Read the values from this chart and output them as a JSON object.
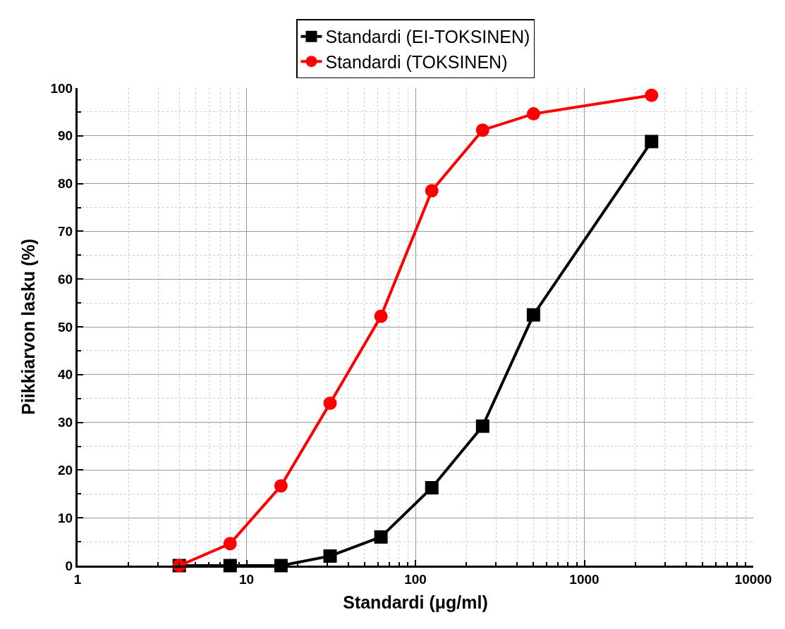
{
  "chart_data": {
    "type": "line",
    "xlabel": "Standardi (μg/ml)",
    "ylabel": "Piikkiarvon lasku (%)",
    "x": [
      4,
      8,
      16,
      31.25,
      62.5,
      125,
      250,
      500,
      2500
    ],
    "series": [
      {
        "name": "Standardi (EI-TOKSINEN)",
        "color": "#000000",
        "marker": "square",
        "values": [
          0,
          0,
          0,
          2,
          6,
          16.3,
          29.2,
          52.5,
          88.8
        ]
      },
      {
        "name": "Standardi (TOKSINEN)",
        "color": "#ff0000",
        "marker": "circle",
        "values": [
          0,
          4.6,
          16.7,
          34,
          52.2,
          78.5,
          91.2,
          94.6,
          98.5
        ]
      }
    ],
    "log": "x",
    "xlim": [
      1,
      10000
    ],
    "xticks": [
      1,
      10,
      100,
      1000,
      10000
    ],
    "ylim": [
      0,
      100
    ],
    "yticks": [
      0,
      10,
      20,
      30,
      40,
      50,
      60,
      70,
      80,
      90,
      100
    ],
    "grid": true,
    "legend": "top",
    "line_style": "solid"
  }
}
